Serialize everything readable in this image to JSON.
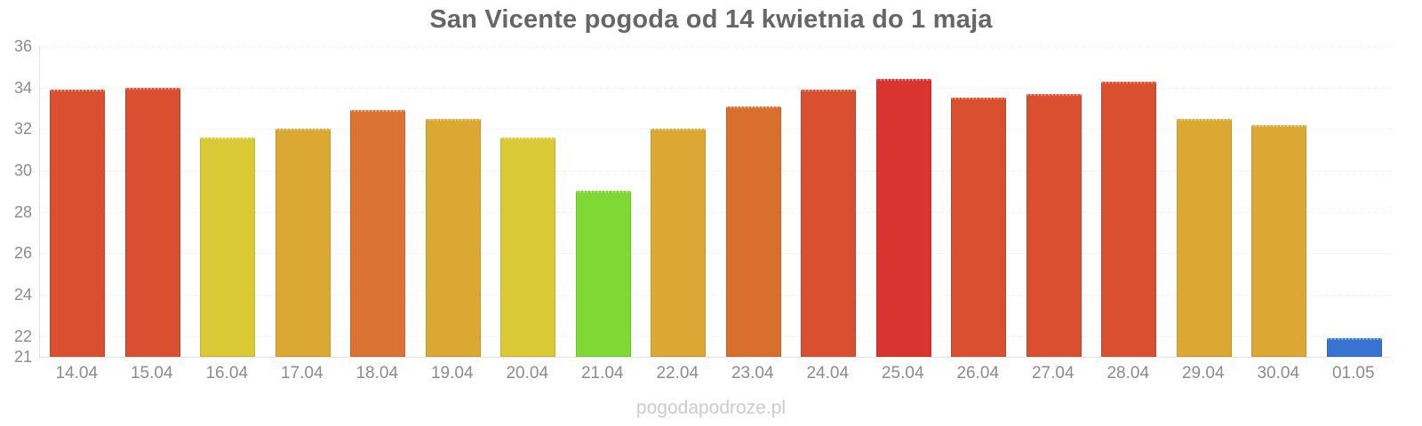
{
  "chart_data": {
    "type": "bar",
    "title": "San Vicente pogoda od 14 kwietnia do 1 maja",
    "categories": [
      "14.04",
      "15.04",
      "16.04",
      "17.04",
      "18.04",
      "19.04",
      "20.04",
      "21.04",
      "22.04",
      "23.04",
      "24.04",
      "25.04",
      "26.04",
      "27.04",
      "28.04",
      "29.04",
      "30.04",
      "01.05"
    ],
    "values": [
      33.9,
      34.0,
      31.6,
      32.0,
      32.9,
      32.5,
      31.6,
      29.0,
      32.0,
      33.1,
      33.9,
      34.4,
      33.5,
      33.7,
      34.3,
      32.5,
      32.2,
      21.9
    ],
    "bar_colors": [
      "#d94f30",
      "#d94f30",
      "#d9c935",
      "#dca834",
      "#da7334",
      "#dca834",
      "#d9c935",
      "#7fd834",
      "#dca834",
      "#d96f2e",
      "#d94f30",
      "#da3431",
      "#d94f30",
      "#d94f30",
      "#d94f30",
      "#dca834",
      "#dca834",
      "#3873d2"
    ],
    "xlabel": "",
    "ylabel": "",
    "ylim": [
      21,
      36
    ],
    "yticks": [
      36,
      34,
      32,
      30,
      28,
      26,
      24,
      22,
      21
    ],
    "grid": "horizontal-faint",
    "legend": "none"
  },
  "watermark": "pogodapodroze.pl",
  "colors": {
    "background": "#ffffff",
    "title_text": "#666667",
    "axis_text": "#8c8c8c",
    "gridline": "#ececec",
    "axis_line": "#e2e2e2",
    "watermark_text": "#cbcbcb"
  }
}
